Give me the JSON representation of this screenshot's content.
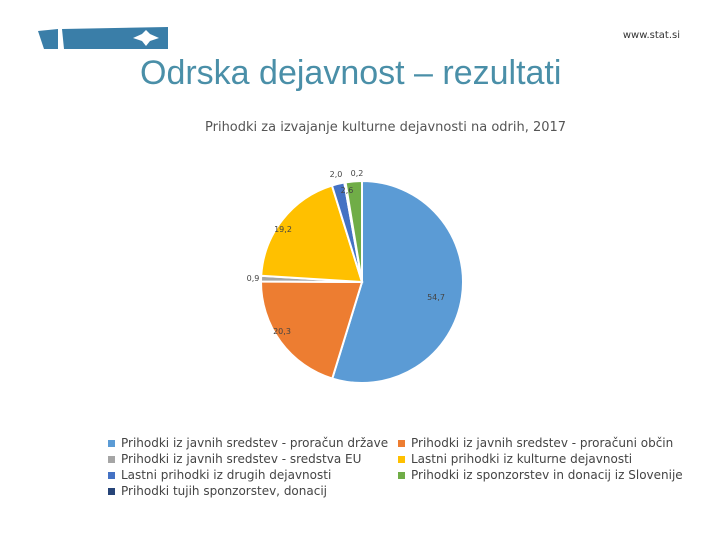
{
  "header": {
    "site_url": "www.stat.si",
    "slide_title": "Odrska dejavnost – rezultati",
    "logo_color": "#3a7ea8"
  },
  "chart_data": {
    "type": "pie",
    "title": "Prihodki za izvajanje kulturne dejavnosti na odrih, 2017",
    "legend_position": "bottom",
    "slices": [
      {
        "name": "Prihodki iz javnih sredstev - proračun države",
        "value": 54.7,
        "label": "54,7",
        "color": "#5b9bd5"
      },
      {
        "name": "Prihodki iz javnih sredstev - proračuni občin",
        "value": 20.3,
        "label": "20,3",
        "color": "#ed7d31"
      },
      {
        "name": "Prihodki iz javnih sredstev - sredstva EU",
        "value": 0.9,
        "label": "0,9",
        "color": "#a5a5a5"
      },
      {
        "name": "Lastni prihodki iz kulturne dejavnosti",
        "value": 19.2,
        "label": "19,2",
        "color": "#ffc000"
      },
      {
        "name": "Lastni prihodki iz drugih dejavnosti",
        "value": 2.0,
        "label": "2,0",
        "color": "#4472c4"
      },
      {
        "name": "Prihodki tujih sponzorstev, donacij",
        "value": 0.2,
        "label": "0,2",
        "color": "#264478"
      },
      {
        "name": "Prihodki iz sponzorstev in donacij iz Slovenije",
        "value": 2.6,
        "label": "2,6",
        "color": "#70ad47"
      }
    ],
    "legend_order": [
      0,
      1,
      2,
      3,
      4,
      6,
      5
    ]
  }
}
